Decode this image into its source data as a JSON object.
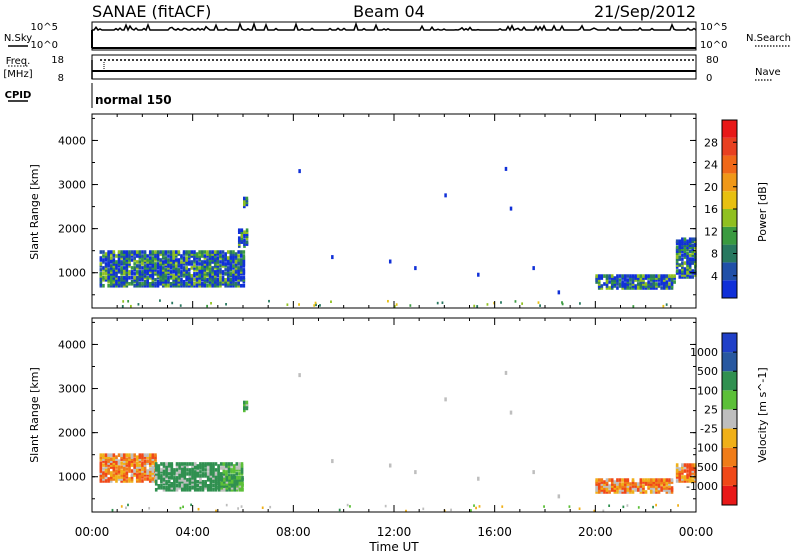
{
  "header": {
    "station": "SANAE (fitACF)",
    "beam": "Beam 04",
    "date": "21/Sep/2012"
  },
  "top_panels": {
    "nsky_label": "N.Sky",
    "nsky_ticks": [
      "10^5",
      "10^0"
    ],
    "nsearch_label": "N.Search",
    "nsearch_ticks": [
      "10^5",
      "10^0"
    ],
    "freq_label_1": "Freq.",
    "freq_label_2": "[MHz]",
    "freq_ticks": [
      "18",
      "8"
    ],
    "nave_label": "Nave",
    "nave_ticks": [
      "80",
      "0"
    ],
    "cpid_label": "CPID",
    "cpid_value": "normal 150"
  },
  "colors": {
    "power_scale": [
      "#1030d8",
      "#2050a8",
      "#287860",
      "#3a9a40",
      "#90c020",
      "#e8c010",
      "#f09818",
      "#f06818",
      "#e84020",
      "#e81818"
    ],
    "velocity_scale": [
      "#e81818",
      "#f04818",
      "#f07c18",
      "#f0b018",
      "#bebebe",
      "#5cc038",
      "#309050",
      "#2858a0",
      "#2040c8"
    ]
  },
  "chart_data": [
    {
      "type": "heatmap",
      "name": "power",
      "ylabel": "Slant Range [km]",
      "xlabel": "",
      "x_range_hours": [
        0,
        24
      ],
      "ylim": [
        200,
        4600
      ],
      "x_tick_labels": [
        "00:00",
        "04:00",
        "08:00",
        "12:00",
        "16:00",
        "20:00",
        "00:00"
      ],
      "y_tick_labels": [
        "1000",
        "2000",
        "3000",
        "4000"
      ],
      "colorbar": {
        "label": "Power [dB]",
        "range": [
          0,
          32
        ],
        "tick_labels": [
          "4",
          "8",
          "12",
          "16",
          "20",
          "24",
          "28"
        ]
      },
      "regions": [
        {
          "x": [
            0.3,
            6.0
          ],
          "y": [
            700,
            1500
          ],
          "level": "4-20 dB"
        },
        {
          "x": [
            5.8,
            6.2
          ],
          "y": [
            1600,
            2000
          ],
          "level": "4-8 dB"
        },
        {
          "x": [
            6.0,
            6.2
          ],
          "y": [
            2500,
            2700
          ],
          "level": "4-8 dB"
        },
        {
          "x": [
            20.0,
            23.2
          ],
          "y": [
            650,
            950
          ],
          "level": "4-20 dB"
        },
        {
          "x": [
            23.2,
            24.0
          ],
          "y": [
            900,
            1800
          ],
          "level": "4-8 dB"
        }
      ]
    },
    {
      "type": "heatmap",
      "name": "velocity",
      "ylabel": "Slant Range [km]",
      "xlabel": "Time UT",
      "x_range_hours": [
        0,
        24
      ],
      "ylim": [
        200,
        4600
      ],
      "x_tick_labels": [
        "00:00",
        "04:00",
        "08:00",
        "12:00",
        "16:00",
        "20:00",
        "00:00"
      ],
      "y_tick_labels": [
        "1000",
        "2000",
        "3000",
        "4000"
      ],
      "colorbar": {
        "label": "Velocity [m s^-1]",
        "tick_labels": [
          "1000",
          "500",
          "100",
          "25",
          "-25",
          "-100",
          "-500",
          "-1000"
        ]
      },
      "regions": [
        {
          "x": [
            0.3,
            2.5
          ],
          "y": [
            900,
            1500
          ],
          "level": "-100 to -500 m/s"
        },
        {
          "x": [
            2.5,
            6.0
          ],
          "y": [
            700,
            1300
          ],
          "level": "25 to 500 m/s"
        },
        {
          "x": [
            5.0,
            6.0
          ],
          "y": [
            700,
            1000
          ],
          "level": "25 to 100 m/s"
        },
        {
          "x": [
            6.0,
            6.2
          ],
          "y": [
            2500,
            2700
          ],
          "level": "-25 to 25 m/s"
        },
        {
          "x": [
            20.0,
            23.0
          ],
          "y": [
            650,
            950
          ],
          "level": "-25 to -500 m/s"
        },
        {
          "x": [
            23.2,
            24.0
          ],
          "y": [
            900,
            1300
          ],
          "level": "-100 to -500 m/s"
        }
      ]
    }
  ]
}
